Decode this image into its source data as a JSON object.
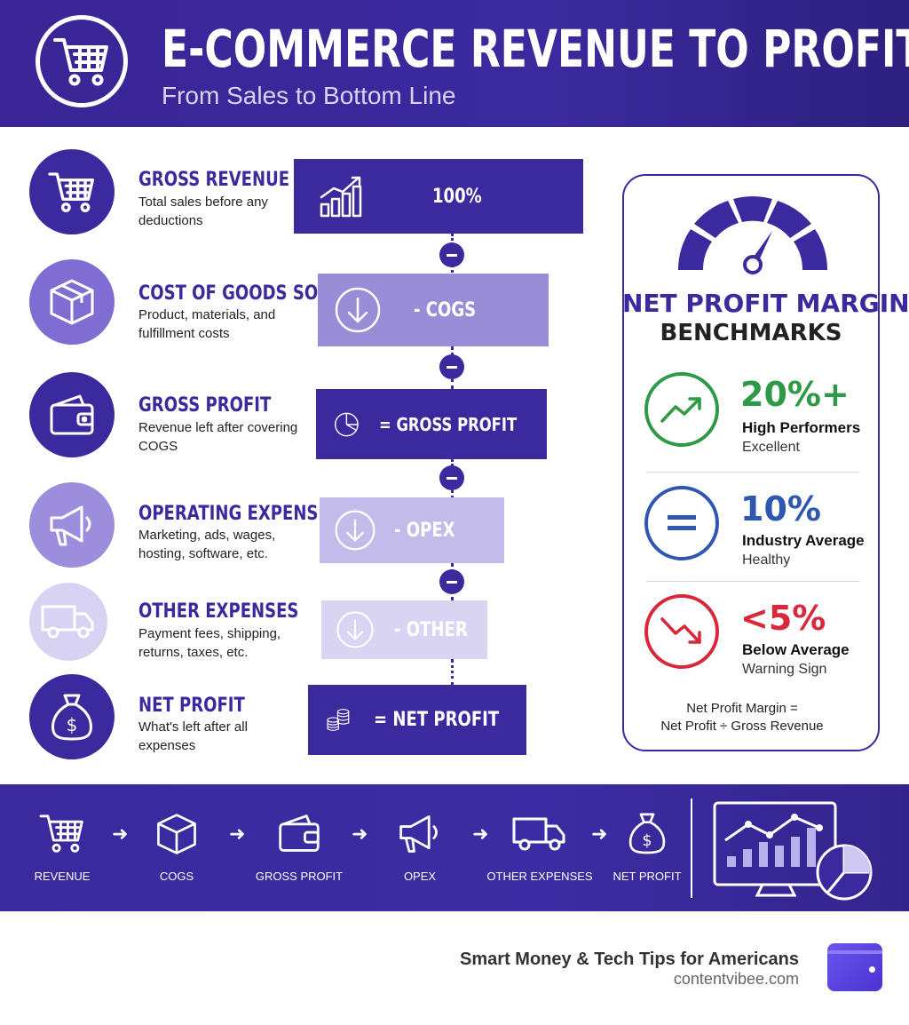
{
  "header": {
    "title": "E-COMMERCE REVENUE TO PROFIT",
    "subtitle": "From Sales to Bottom Line"
  },
  "stages": [
    {
      "title": "GROSS REVENUE",
      "desc": "Total sales before any deductions",
      "icon": "shopping-cart-icon",
      "box_label": "100%",
      "box_icon": "growth-chart-icon"
    },
    {
      "title": "COST OF GOODS SOLD",
      "desc": "Product, materials, and fulfillment costs",
      "icon": "box-icon",
      "box_label": "- COGS",
      "box_icon": "down-arrow-icon"
    },
    {
      "title": "GROSS PROFIT",
      "desc": "Revenue left after covering COGS",
      "icon": "wallet-icon",
      "box_label": "= GROSS PROFIT",
      "box_icon": "pie-chart-icon"
    },
    {
      "title": "OPERATING EXPENSES",
      "desc": "Marketing, ads, wages, hosting, software, etc.",
      "icon": "megaphone-icon",
      "box_label": "- OPEX",
      "box_icon": "down-arrow-icon"
    },
    {
      "title": "OTHER EXPENSES",
      "desc": "Payment fees, shipping, returns, taxes, etc.",
      "icon": "truck-icon",
      "box_label": "- OTHER",
      "box_icon": "down-arrow-icon"
    },
    {
      "title": "NET PROFIT",
      "desc": "What's left after all expenses",
      "icon": "money-bag-icon",
      "box_label": "= NET PROFIT",
      "box_icon": "coin-stack-icon"
    }
  ],
  "benchmarks": {
    "title": "NET PROFIT MARGIN",
    "subtitle": "BENCHMARKS",
    "items": [
      {
        "value": "20%+",
        "label": "High Performers",
        "note": "Excellent",
        "color": "#2e9a48",
        "icon": "trend-up-icon"
      },
      {
        "value": "10%",
        "label": "Industry Average",
        "note": "Healthy",
        "color": "#2f56b0",
        "icon": "equals-icon"
      },
      {
        "value": "<5%",
        "label": "Below Average",
        "note": "Warning Sign",
        "color": "#d8283a",
        "icon": "trend-down-icon"
      }
    ],
    "formula_line1": "Net Profit Margin =",
    "formula_line2": "Net Profit ÷ Gross Revenue"
  },
  "band": {
    "steps": [
      "REVENUE",
      "COGS",
      "GROSS PROFIT",
      "OPEX",
      "OTHER EXPENSES",
      "NET PROFIT"
    ]
  },
  "footer": {
    "tagline": "Smart Money & Tech Tips for Americans",
    "site": "contentvibee.com"
  },
  "colors": {
    "primary": "#3a2a9e",
    "box2": "#9a8dd8",
    "box4": "#c3bbe9",
    "box5": "#d9d4f2"
  }
}
